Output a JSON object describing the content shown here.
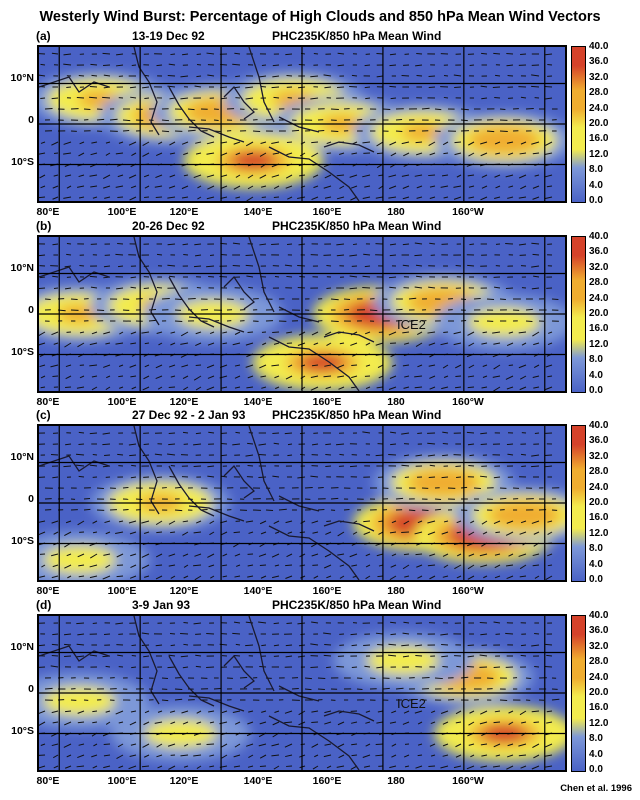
{
  "title": "Westerly Wind Burst: Percentage of High Clouds and 850 hPa Mean Wind Vectors",
  "credit": "Chen et al. 1996",
  "colors": {
    "low": "#4a62c6",
    "mid_blue": "#7d98d8",
    "yellow": "#f3ec4e",
    "orange": "#f0ad30",
    "red": "#d5422a",
    "coast": "#1a1a2e"
  },
  "chart_data": [
    {
      "type": "heatmap",
      "panel": "(a)",
      "period": "13-19 Dec 92",
      "subtitle": "PHC235K/850 hPa Mean Wind",
      "x_ticks": [
        "80°E",
        "100°E",
        "120°E",
        "140°E",
        "160°E",
        "180",
        "160°W"
      ],
      "y_ticks": [
        "10°N",
        "0",
        "10°S"
      ],
      "colorbar_ticks": [
        "40.0",
        "36.0",
        "32.0",
        "28.0",
        "24.0",
        "20.0",
        "16.0",
        "12.0",
        "8.0",
        "4.0",
        "0.0"
      ],
      "xlim": [
        75,
        205
      ],
      "ylim": [
        -19,
        19
      ],
      "high_cloud_regions": [
        {
          "lon": 90,
          "lat": 6,
          "peak": 24
        },
        {
          "lon": 107,
          "lat": 2,
          "peak": 28
        },
        {
          "lon": 120,
          "lat": 3,
          "peak": 28
        },
        {
          "lon": 138,
          "lat": 6,
          "peak": 24
        },
        {
          "lon": 150,
          "lat": 0,
          "peak": 24
        },
        {
          "lon": 128,
          "lat": -9,
          "peak": 32
        },
        {
          "lon": 170,
          "lat": -2,
          "peak": 24
        },
        {
          "lon": 190,
          "lat": -4,
          "peak": 28
        }
      ]
    },
    {
      "type": "heatmap",
      "panel": "(b)",
      "period": "20-26 Dec 92",
      "subtitle": "PHC235K/850 hPa Mean Wind",
      "annotation": "ICE2",
      "x_ticks": [
        "80°E",
        "100°E",
        "120°E",
        "140°E",
        "160°E",
        "180",
        "160°W"
      ],
      "y_ticks": [
        "10°N",
        "0",
        "10°S"
      ],
      "colorbar_ticks": [
        "40.0",
        "36.0",
        "32.0",
        "28.0",
        "24.0",
        "20.0",
        "16.0",
        "12.0",
        "8.0",
        "4.0",
        "0.0"
      ],
      "xlim": [
        75,
        205
      ],
      "ylim": [
        -19,
        19
      ],
      "high_cloud_regions": [
        {
          "lon": 85,
          "lat": 0,
          "peak": 24
        },
        {
          "lon": 105,
          "lat": 2,
          "peak": 24
        },
        {
          "lon": 118,
          "lat": 0,
          "peak": 20
        },
        {
          "lon": 160,
          "lat": 0,
          "peak": 36
        },
        {
          "lon": 145,
          "lat": -12,
          "peak": 32
        },
        {
          "lon": 175,
          "lat": 3,
          "peak": 28
        },
        {
          "lon": 190,
          "lat": -2,
          "peak": 20
        }
      ]
    },
    {
      "type": "heatmap",
      "panel": "(c)",
      "period": "27 Dec 92 - 2 Jan 93",
      "subtitle": "PHC235K/850 hPa Mean Wind",
      "x_ticks": [
        "80°E",
        "100°E",
        "120°E",
        "140°E",
        "160°E",
        "180",
        "160°W"
      ],
      "y_ticks": [
        "10°N",
        "0",
        "10°S"
      ],
      "colorbar_ticks": [
        "40.0",
        "36.0",
        "32.0",
        "28.0",
        "24.0",
        "20.0",
        "16.0",
        "12.0",
        "8.0",
        "4.0",
        "0.0"
      ],
      "xlim": [
        75,
        205
      ],
      "ylim": [
        -19,
        19
      ],
      "high_cloud_regions": [
        {
          "lon": 105,
          "lat": 0,
          "peak": 24
        },
        {
          "lon": 85,
          "lat": -14,
          "peak": 20
        },
        {
          "lon": 170,
          "lat": -5,
          "peak": 36
        },
        {
          "lon": 185,
          "lat": -8,
          "peak": 36
        },
        {
          "lon": 175,
          "lat": 5,
          "peak": 28
        },
        {
          "lon": 195,
          "lat": -3,
          "peak": 28
        }
      ]
    },
    {
      "type": "heatmap",
      "panel": "(d)",
      "period": "3-9 Jan 93",
      "subtitle": "PHC235K/850 hPa Mean Wind",
      "annotation": "ICE2",
      "x_ticks": [
        "80°E",
        "100°E",
        "120°E",
        "140°E",
        "160°E",
        "180",
        "160°W"
      ],
      "y_ticks": [
        "10°N",
        "0",
        "10°S"
      ],
      "colorbar_ticks": [
        "40.0",
        "36.0",
        "32.0",
        "28.0",
        "24.0",
        "20.0",
        "16.0",
        "12.0",
        "8.0",
        "4.0",
        "0.0"
      ],
      "xlim": [
        75,
        205
      ],
      "ylim": [
        -19,
        19
      ],
      "high_cloud_regions": [
        {
          "lon": 85,
          "lat": -2,
          "peak": 20
        },
        {
          "lon": 110,
          "lat": -10,
          "peak": 20
        },
        {
          "lon": 180,
          "lat": 4,
          "peak": 28
        },
        {
          "lon": 190,
          "lat": -10,
          "peak": 32
        },
        {
          "lon": 165,
          "lat": 8,
          "peak": 20
        }
      ]
    }
  ]
}
